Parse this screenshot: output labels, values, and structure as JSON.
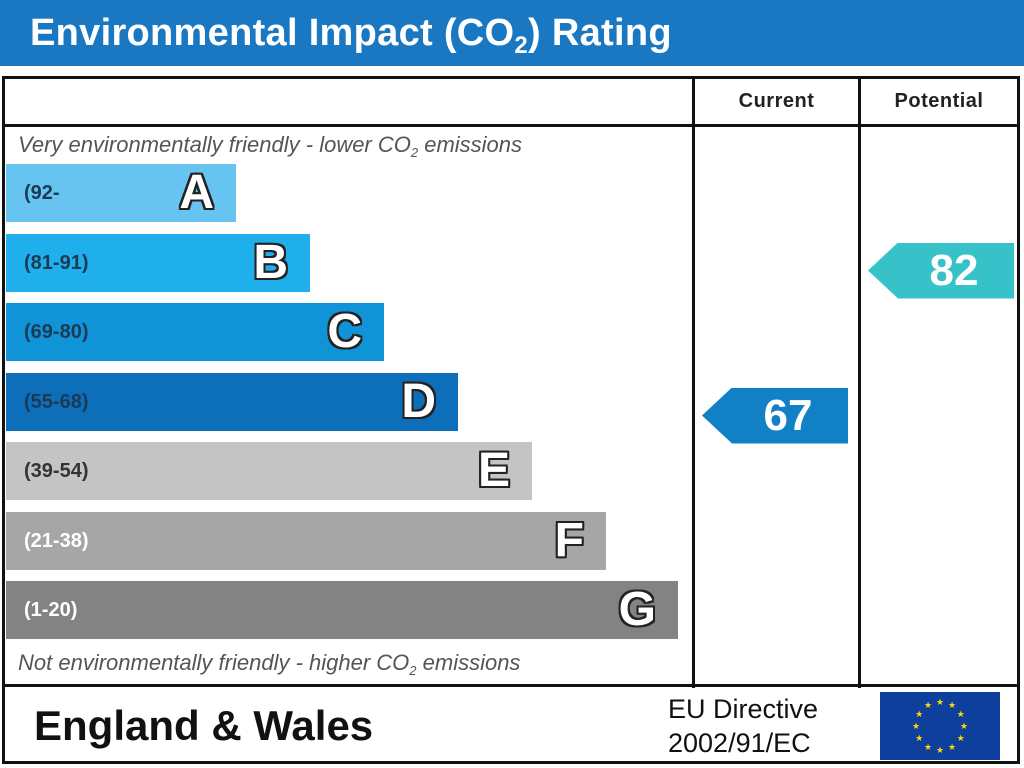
{
  "header": {
    "title_prefix": "Environmental Impact (CO",
    "title_sub": "2",
    "title_suffix": ") Rating"
  },
  "columns": {
    "current": "Current",
    "potential": "Potential"
  },
  "notes": {
    "top_prefix": "Very environmentally friendly - lower CO",
    "top_sub": "2",
    "top_suffix": " emissions",
    "bottom_prefix": "Not environmentally friendly - higher CO",
    "bottom_sub": "2",
    "bottom_suffix": " emissions"
  },
  "chart_data": {
    "type": "bar",
    "categories": [
      "A",
      "B",
      "C",
      "D",
      "E",
      "F",
      "G"
    ],
    "bands": [
      {
        "letter": "A",
        "range": "(92-",
        "color": "#67c3ef",
        "range_color": "#1a3a55"
      },
      {
        "letter": "B",
        "range": "(81-91)",
        "color": "#1fb0ec",
        "range_color": "#1a3a55"
      },
      {
        "letter": "C",
        "range": "(69-80)",
        "color": "#1193d8",
        "range_color": "#1a3a55"
      },
      {
        "letter": "D",
        "range": "(55-68)",
        "color": "#0d6fb9",
        "range_color": "#1a3a55"
      },
      {
        "letter": "E",
        "range": "(39-54)",
        "color": "#c4c4c4",
        "range_color": "#333333"
      },
      {
        "letter": "F",
        "range": "(21-38)",
        "color": "#a6a6a6",
        "range_color": "#ffffff"
      },
      {
        "letter": "G",
        "range": "(1-20)",
        "color": "#838383",
        "range_color": "#ffffff"
      }
    ],
    "current": {
      "value": 67,
      "band": "D",
      "color": "#1180c4"
    },
    "potential": {
      "value": 82,
      "band": "B",
      "color": "#36c2c8"
    }
  },
  "footer": {
    "region": "England & Wales",
    "directive_line1": "EU Directive",
    "directive_line2": "2002/91/EC"
  },
  "colors": {
    "title_bar": "#1a78c2",
    "flag_blue": "#0f3f9c",
    "flag_stars": "#f5d90a"
  }
}
